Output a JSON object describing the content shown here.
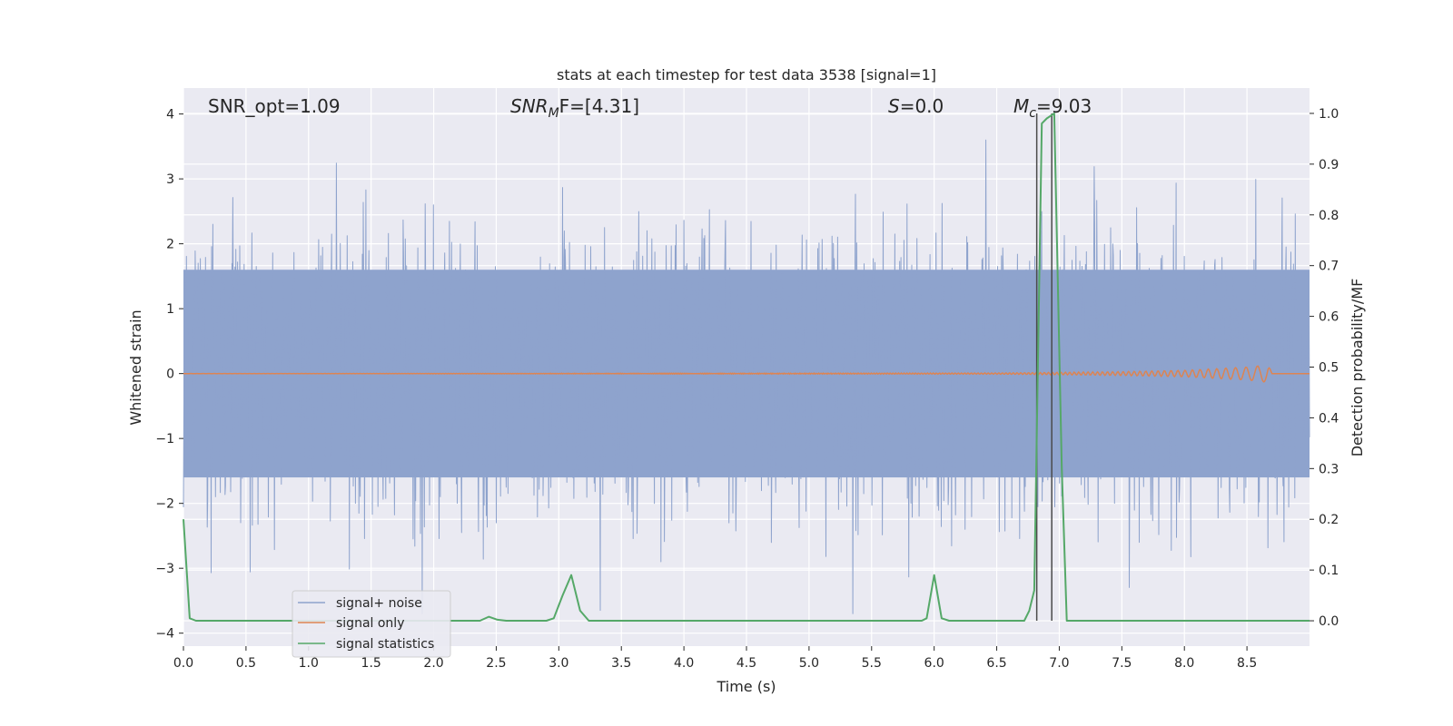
{
  "chart_data": {
    "type": "line",
    "title": "stats at each timestep for test data 3538 [signal=1]",
    "xlabel": "Time (s)",
    "ylabel": "Whitened strain",
    "y2label": "Detection probability/MF",
    "xlim": [
      0,
      9.0
    ],
    "ylim": [
      -4.2,
      4.4
    ],
    "y2lim": [
      -0.05,
      1.05
    ],
    "xticks": [
      "0.0",
      "0.5",
      "1.0",
      "1.5",
      "2.0",
      "2.5",
      "3.0",
      "3.5",
      "4.0",
      "4.5",
      "5.0",
      "5.5",
      "6.0",
      "6.5",
      "7.0",
      "7.5",
      "8.0",
      "8.5"
    ],
    "yticks": [
      "4",
      "3",
      "2",
      "1",
      "0",
      "−1",
      "−2",
      "−3",
      "−4"
    ],
    "y2ticks": [
      "1.0",
      "0.9",
      "0.8",
      "0.7",
      "0.6",
      "0.5",
      "0.4",
      "0.3",
      "0.2",
      "0.1",
      "0.0"
    ],
    "grid": true,
    "legend_placement": "lower-left",
    "annotations": {
      "snr_opt": "SNR_opt=1.09",
      "snr_mf_name": "SNR",
      "snr_mf_sub": "M",
      "snr_mf_rest": "F=[4.31]",
      "s_name": "S",
      "s_rest": "=0.0",
      "mc_name": "M",
      "mc_sub": "c",
      "mc_rest": "=9.03"
    },
    "vlines_x": [
      6.82,
      6.94
    ],
    "series": [
      {
        "name": "signal+ noise",
        "color": "#8ea3cd",
        "description_values": "dense noise, |y| up to ~3.6",
        "band": [
          -1.6,
          1.6
        ]
      },
      {
        "name": "signal only",
        "color": "#dd8452",
        "x": [
          0,
          6.5,
          7.0,
          7.5,
          8.0,
          8.3,
          8.5,
          8.6,
          8.67,
          8.7,
          9.0
        ],
        "y": [
          0,
          0.01,
          0.02,
          0.03,
          0.05,
          0.08,
          0.1,
          0.12,
          0.14,
          0,
          0
        ]
      },
      {
        "name": "signal statistics",
        "color": "#55a868",
        "x": [
          0.0,
          0.05,
          0.1,
          0.2,
          2.3,
          2.37,
          2.44,
          2.51,
          2.58,
          2.9,
          2.96,
          3.03,
          3.1,
          3.17,
          3.24,
          3.3,
          5.9,
          5.94,
          6.0,
          6.06,
          6.12,
          6.2,
          6.72,
          6.76,
          6.8,
          6.86,
          6.9,
          6.96,
          7.02,
          7.06,
          7.1,
          9.0
        ],
        "y": [
          0.2,
          0.005,
          0.0,
          0.0,
          0.0,
          0.0,
          0.008,
          0.002,
          0.0,
          0.0,
          0.005,
          0.05,
          0.09,
          0.02,
          0.0,
          0.0,
          0.0,
          0.005,
          0.09,
          0.005,
          0.0,
          0.0,
          0.0,
          0.02,
          0.06,
          0.98,
          0.99,
          1.0,
          0.3,
          0.0,
          0.0,
          0.0
        ]
      }
    ]
  }
}
